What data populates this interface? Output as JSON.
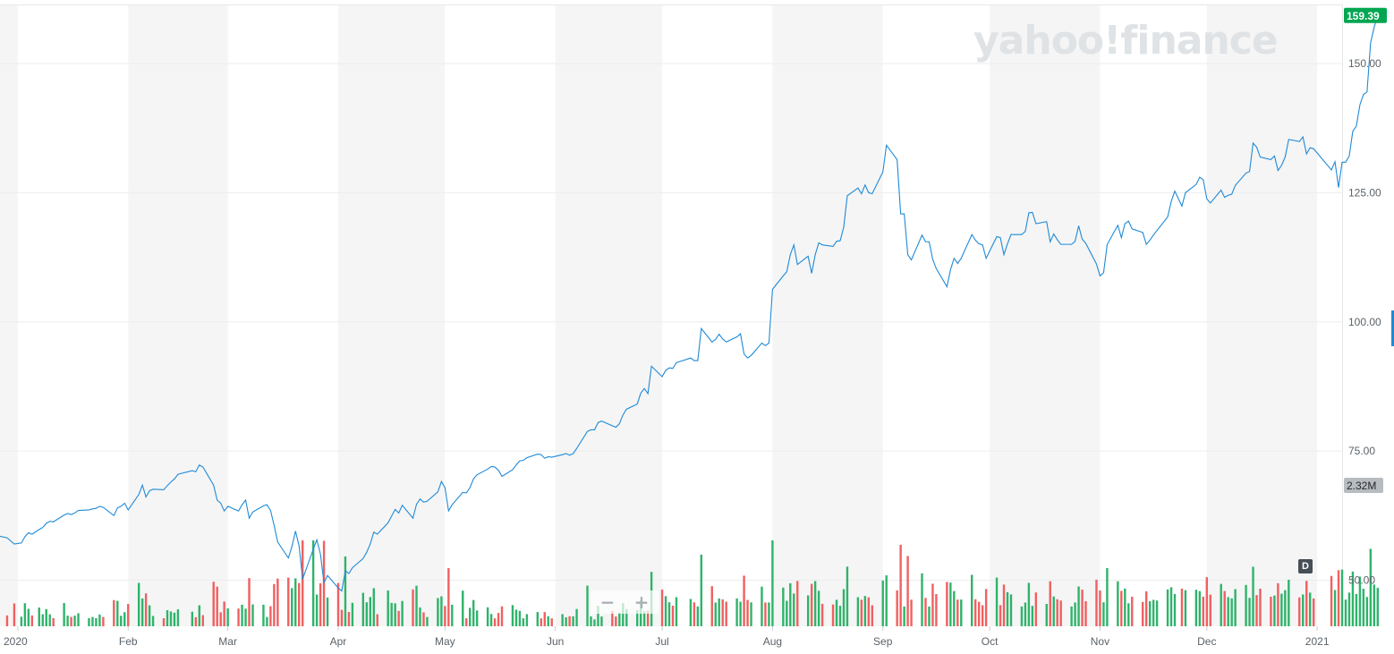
{
  "branding": {
    "watermark": "yahoo!finance"
  },
  "colors": {
    "line": "#1f8ad6",
    "up": "#2fb36b",
    "down": "#f06060",
    "band": "#f5f5f5",
    "last_price_badge": "#00a651",
    "volume_badge": "#b7bcc1"
  },
  "zoom": {
    "minus": "−",
    "plus": "+"
  },
  "period_badge": "D",
  "chart_data": {
    "type": "line",
    "title": "",
    "xlabel": "",
    "ylabel": "",
    "ylim": [
      40,
      160
    ],
    "yticks": [
      "150.00",
      "125.00",
      "100.00",
      "75.00",
      "50.00"
    ],
    "ytick_values": [
      150,
      125,
      100,
      75,
      50
    ],
    "x_labels": [
      "2020",
      "Feb",
      "Mar",
      "Apr",
      "May",
      "Jun",
      "Jul",
      "Aug",
      "Sep",
      "Oct",
      "Nov",
      "Dec",
      "2021"
    ],
    "x_label_days": [
      0,
      31,
      59,
      90,
      120,
      151,
      181,
      212,
      243,
      273,
      304,
      334,
      365
    ],
    "x_range_days": [
      -5,
      372
    ],
    "last_price": "159.39",
    "volume_label": "2.32M",
    "volume_max_m": 2.4,
    "grid": true,
    "series": [
      {
        "kind": "price",
        "points": [
          [
            -5,
            58.5
          ],
          [
            -3,
            58.2
          ],
          [
            -1,
            57.0
          ],
          [
            1,
            57.2
          ],
          [
            2,
            58.4
          ],
          [
            3,
            59.2
          ],
          [
            4,
            58.9
          ],
          [
            6,
            59.8
          ],
          [
            7,
            60.2
          ],
          [
            8,
            61.0
          ],
          [
            9,
            61.4
          ],
          [
            10,
            61.3
          ],
          [
            13,
            62.6
          ],
          [
            14,
            62.9
          ],
          [
            15,
            62.7
          ],
          [
            16,
            63.0
          ],
          [
            17,
            63.5
          ],
          [
            20,
            63.6
          ],
          [
            21,
            63.8
          ],
          [
            22,
            63.9
          ],
          [
            23,
            64.3
          ],
          [
            24,
            64.1
          ],
          [
            27,
            62.5
          ],
          [
            28,
            64.0
          ],
          [
            29,
            64.3
          ],
          [
            30,
            64.9
          ],
          [
            31,
            63.6
          ],
          [
            34,
            66.6
          ],
          [
            35,
            68.4
          ],
          [
            36,
            66.1
          ],
          [
            37,
            67.3
          ],
          [
            38,
            67.6
          ],
          [
            41,
            67.5
          ],
          [
            42,
            68.3
          ],
          [
            43,
            69.0
          ],
          [
            44,
            69.6
          ],
          [
            45,
            70.5
          ],
          [
            49,
            71.2
          ],
          [
            50,
            71.0
          ],
          [
            51,
            72.3
          ],
          [
            52,
            71.9
          ],
          [
            55,
            68.4
          ],
          [
            56,
            65.5
          ],
          [
            57,
            64.9
          ],
          [
            58,
            63.4
          ],
          [
            59,
            64.3
          ],
          [
            62,
            63.4
          ],
          [
            63,
            64.6
          ],
          [
            64,
            65.5
          ],
          [
            65,
            62.0
          ],
          [
            66,
            63.2
          ],
          [
            69,
            64.4
          ],
          [
            70,
            64.6
          ],
          [
            71,
            63.5
          ],
          [
            72,
            60.6
          ],
          [
            73,
            57.4
          ],
          [
            76,
            54.3
          ],
          [
            77,
            56.5
          ],
          [
            78,
            59.5
          ],
          [
            79,
            56.7
          ],
          [
            80,
            50.2
          ],
          [
            83,
            56.0
          ],
          [
            84,
            57.8
          ],
          [
            85,
            55.1
          ],
          [
            86,
            49.5
          ],
          [
            87,
            50.9
          ],
          [
            90,
            48.5
          ],
          [
            91,
            47.9
          ],
          [
            92,
            51.8
          ],
          [
            93,
            51.3
          ],
          [
            94,
            52.4
          ],
          [
            97,
            54.2
          ],
          [
            98,
            55.4
          ],
          [
            99,
            57.0
          ],
          [
            100,
            59.3
          ],
          [
            101,
            58.9
          ],
          [
            104,
            61.1
          ],
          [
            105,
            62.4
          ],
          [
            106,
            63.7
          ],
          [
            107,
            63.0
          ],
          [
            108,
            64.5
          ],
          [
            111,
            62.0
          ],
          [
            112,
            64.7
          ],
          [
            113,
            65.7
          ],
          [
            114,
            65.1
          ],
          [
            115,
            65.3
          ],
          [
            118,
            67.1
          ],
          [
            119,
            69.1
          ],
          [
            120,
            67.9
          ],
          [
            121,
            63.4
          ],
          [
            122,
            64.6
          ],
          [
            125,
            67.0
          ],
          [
            126,
            66.9
          ],
          [
            127,
            67.9
          ],
          [
            128,
            69.6
          ],
          [
            129,
            70.4
          ],
          [
            132,
            71.5
          ],
          [
            133,
            72.0
          ],
          [
            134,
            71.9
          ],
          [
            135,
            71.3
          ],
          [
            136,
            70.1
          ],
          [
            139,
            71.4
          ],
          [
            140,
            72.3
          ],
          [
            141,
            73.1
          ],
          [
            142,
            73.2
          ],
          [
            143,
            73.7
          ],
          [
            146,
            74.4
          ],
          [
            147,
            74.3
          ],
          [
            148,
            73.6
          ],
          [
            149,
            73.9
          ],
          [
            150,
            73.8
          ],
          [
            153,
            74.3
          ],
          [
            154,
            74.5
          ],
          [
            155,
            74.2
          ],
          [
            156,
            74.5
          ],
          [
            157,
            75.5
          ],
          [
            160,
            78.8
          ],
          [
            161,
            79.1
          ],
          [
            162,
            79.1
          ],
          [
            163,
            80.5
          ],
          [
            164,
            80.8
          ],
          [
            167,
            79.9
          ],
          [
            168,
            79.6
          ],
          [
            169,
            80.3
          ],
          [
            170,
            82.0
          ],
          [
            171,
            83.1
          ],
          [
            174,
            84.1
          ],
          [
            175,
            86.2
          ],
          [
            176,
            87.1
          ],
          [
            177,
            86.1
          ],
          [
            178,
            91.4
          ],
          [
            181,
            89.4
          ],
          [
            182,
            90.6
          ],
          [
            183,
            91.1
          ],
          [
            184,
            91.0
          ],
          [
            185,
            92.1
          ],
          [
            189,
            93.0
          ],
          [
            190,
            92.5
          ],
          [
            191,
            92.5
          ],
          [
            192,
            98.7
          ],
          [
            195,
            96.1
          ],
          [
            196,
            96.6
          ],
          [
            197,
            97.6
          ],
          [
            198,
            96.7
          ],
          [
            199,
            96.1
          ],
          [
            202,
            97.1
          ],
          [
            203,
            97.7
          ],
          [
            204,
            93.8
          ],
          [
            205,
            93.0
          ],
          [
            206,
            93.5
          ],
          [
            209,
            95.9
          ],
          [
            210,
            95.4
          ],
          [
            211,
            95.9
          ],
          [
            212,
            106.3
          ],
          [
            215,
            108.9
          ],
          [
            216,
            109.7
          ],
          [
            217,
            113.0
          ],
          [
            218,
            114.9
          ],
          [
            219,
            111.1
          ],
          [
            222,
            112.7
          ],
          [
            223,
            109.4
          ],
          [
            224,
            113.0
          ],
          [
            225,
            115.3
          ],
          [
            226,
            114.9
          ],
          [
            229,
            114.6
          ],
          [
            230,
            115.6
          ],
          [
            231,
            115.7
          ],
          [
            232,
            118.3
          ],
          [
            233,
            124.4
          ],
          [
            236,
            125.9
          ],
          [
            237,
            124.8
          ],
          [
            238,
            126.5
          ],
          [
            239,
            125.0
          ],
          [
            240,
            124.8
          ],
          [
            243,
            129.0
          ],
          [
            244,
            134.2
          ],
          [
            247,
            131.4
          ],
          [
            248,
            120.9
          ],
          [
            249,
            120.9
          ],
          [
            250,
            113.0
          ],
          [
            251,
            112.0
          ],
          [
            254,
            116.8
          ],
          [
            255,
            115.5
          ],
          [
            256,
            115.5
          ],
          [
            257,
            112.1
          ],
          [
            258,
            110.3
          ],
          [
            261,
            106.8
          ],
          [
            262,
            110.1
          ],
          [
            263,
            112.3
          ],
          [
            264,
            111.3
          ],
          [
            265,
            112.3
          ],
          [
            268,
            116.9
          ],
          [
            269,
            115.8
          ],
          [
            270,
            115.1
          ],
          [
            271,
            114.9
          ],
          [
            272,
            112.3
          ],
          [
            275,
            116.5
          ],
          [
            276,
            116.3
          ],
          [
            277,
            113.0
          ],
          [
            278,
            115.1
          ],
          [
            279,
            116.9
          ],
          [
            282,
            116.9
          ],
          [
            283,
            117.5
          ],
          [
            284,
            121.1
          ],
          [
            285,
            121.2
          ],
          [
            286,
            119.0
          ],
          [
            289,
            119.4
          ],
          [
            290,
            115.5
          ],
          [
            291,
            117.0
          ],
          [
            292,
            115.9
          ],
          [
            293,
            115.0
          ],
          [
            296,
            115.0
          ],
          [
            297,
            115.6
          ],
          [
            298,
            118.6
          ],
          [
            299,
            116.0
          ],
          [
            300,
            115.2
          ],
          [
            303,
            111.2
          ],
          [
            304,
            108.9
          ],
          [
            305,
            109.5
          ],
          [
            306,
            114.95
          ],
          [
            309,
            118.7
          ],
          [
            310,
            116.3
          ],
          [
            311,
            119.0
          ],
          [
            312,
            119.5
          ],
          [
            313,
            118.0
          ],
          [
            316,
            117.3
          ],
          [
            317,
            115.0
          ],
          [
            318,
            115.8
          ],
          [
            319,
            116.8
          ],
          [
            320,
            117.7
          ],
          [
            323,
            120.3
          ],
          [
            324,
            123.3
          ],
          [
            325,
            125.3
          ],
          [
            327,
            122.4
          ],
          [
            328,
            125.0
          ],
          [
            331,
            126.6
          ],
          [
            332,
            128.0
          ],
          [
            333,
            127.5
          ],
          [
            334,
            123.8
          ],
          [
            335,
            123.0
          ],
          [
            338,
            125.5
          ],
          [
            339,
            124.1
          ],
          [
            340,
            124.5
          ],
          [
            341,
            124.7
          ],
          [
            342,
            126.4
          ],
          [
            345,
            128.8
          ],
          [
            346,
            129.1
          ],
          [
            347,
            134.6
          ],
          [
            348,
            133.8
          ],
          [
            349,
            131.9
          ],
          [
            352,
            131.4
          ],
          [
            353,
            132.1
          ],
          [
            354,
            129.3
          ],
          [
            355,
            130.3
          ],
          [
            356,
            131.9
          ],
          [
            357,
            135.3
          ],
          [
            360,
            134.9
          ],
          [
            361,
            135.8
          ],
          [
            362,
            132.5
          ],
          [
            363,
            133.7
          ],
          [
            364,
            133.5
          ],
          [
            369,
            129.4
          ],
          [
            370,
            131.0
          ],
          [
            371,
            126.0
          ],
          [
            372,
            130.9
          ],
          [
            373,
            130.9
          ],
          [
            374,
            132.1
          ],
          [
            375,
            136.9
          ],
          [
            376,
            137.9
          ],
          [
            377,
            142.0
          ],
          [
            378,
            144.0
          ],
          [
            379,
            144.5
          ],
          [
            380,
            154.0
          ],
          [
            381,
            157.0
          ],
          [
            382,
            159.39
          ]
        ]
      }
    ]
  }
}
